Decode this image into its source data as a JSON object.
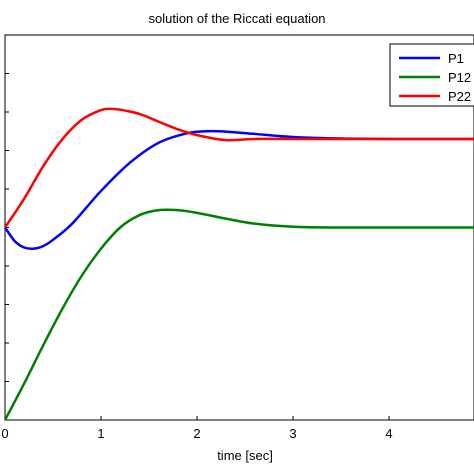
{
  "chart_data": {
    "type": "line",
    "title": "solution of the  Riccati equation",
    "xlabel": "time [sec]",
    "ylabel": "",
    "xlim": [
      0,
      5
    ],
    "ylim": [
      0,
      1
    ],
    "x_ticks": [
      "0",
      "1",
      "2",
      "3",
      "4"
    ],
    "grid": false,
    "legend_position": "top-right",
    "series": [
      {
        "name": "P11",
        "legend_text": "P1",
        "color": "#0000ff",
        "x": [
          0,
          0.1,
          0.2,
          0.3,
          0.4,
          0.5,
          0.7,
          1.0,
          1.3,
          1.6,
          1.9,
          2.1,
          2.3,
          2.6,
          3.0,
          3.5,
          4.0,
          4.5,
          5.0
        ],
        "y": [
          0.5,
          0.465,
          0.448,
          0.445,
          0.452,
          0.468,
          0.51,
          0.595,
          0.668,
          0.72,
          0.745,
          0.75,
          0.749,
          0.743,
          0.735,
          0.731,
          0.73,
          0.73,
          0.73
        ]
      },
      {
        "name": "P12",
        "legend_text": "P12",
        "color": "#008000",
        "x": [
          0,
          0.2,
          0.4,
          0.6,
          0.8,
          1.0,
          1.2,
          1.4,
          1.6,
          1.8,
          2.0,
          2.3,
          2.6,
          3.0,
          3.5,
          4.0,
          4.5,
          5.0
        ],
        "y": [
          0.0,
          0.095,
          0.195,
          0.29,
          0.375,
          0.445,
          0.5,
          0.532,
          0.545,
          0.545,
          0.538,
          0.523,
          0.51,
          0.502,
          0.5,
          0.5,
          0.5,
          0.5
        ]
      },
      {
        "name": "P22",
        "legend_text": "P22",
        "color": "#ff0000",
        "x": [
          0,
          0.2,
          0.4,
          0.6,
          0.8,
          1.0,
          1.1,
          1.2,
          1.4,
          1.6,
          1.8,
          2.0,
          2.3,
          2.6,
          3.0,
          3.5,
          4.0,
          4.5,
          5.0
        ],
        "y": [
          0.5,
          0.575,
          0.66,
          0.73,
          0.78,
          0.805,
          0.808,
          0.806,
          0.795,
          0.775,
          0.755,
          0.74,
          0.727,
          0.73,
          0.73,
          0.73,
          0.73,
          0.73,
          0.73
        ]
      }
    ]
  }
}
